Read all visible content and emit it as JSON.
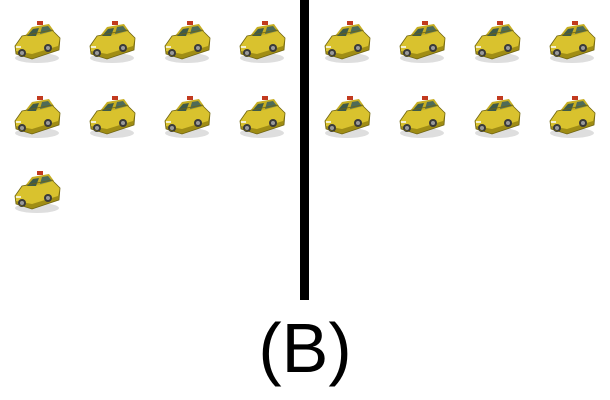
{
  "caption": "(B)",
  "groups": {
    "left": {
      "count": 9
    },
    "right": {
      "count": 8
    }
  },
  "icon": "taxi-icon",
  "colors": {
    "taxi_body": "#d9c22e",
    "taxi_shade": "#a08d15",
    "divider": "#000000"
  }
}
